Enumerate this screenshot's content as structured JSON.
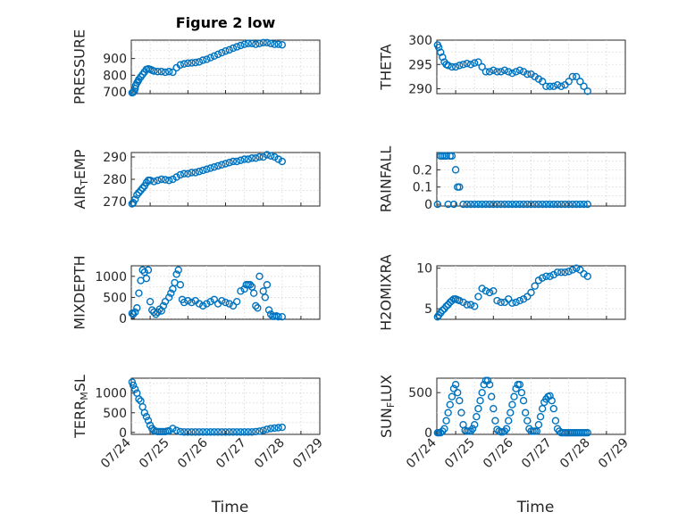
{
  "colors": {
    "marker": "#0072BD",
    "axis": "#262626",
    "grid": "#d6d6d6",
    "background": "#ffffff"
  },
  "chart_data": [
    {
      "type": "scatter",
      "title": "Figure 2 low",
      "ylabel": "PRESSURE",
      "ylim": [
        690,
        1010
      ],
      "yticks": [
        700,
        800,
        900
      ],
      "ytick_labels": [
        "700",
        "800",
        "900"
      ],
      "xlim": [
        0,
        5
      ],
      "grid": true,
      "show_xticklabels": false,
      "series": [
        {
          "x": [
            0.02,
            0.05,
            0.08,
            0.1,
            0.12,
            0.15,
            0.18,
            0.2,
            0.25,
            0.3,
            0.35,
            0.4,
            0.45,
            0.5,
            0.55,
            0.6,
            0.7,
            0.8,
            0.9,
            1.0,
            1.1,
            1.2,
            1.3,
            1.4,
            1.5,
            1.6,
            1.7,
            1.8,
            1.9,
            2.0,
            2.1,
            2.2,
            2.3,
            2.4,
            2.5,
            2.6,
            2.7,
            2.8,
            2.9,
            3.0,
            3.1,
            3.2,
            3.3,
            3.4,
            3.5,
            3.6,
            3.7,
            3.8,
            3.9,
            4.0
          ],
          "y": [
            695,
            698,
            705,
            720,
            740,
            755,
            765,
            775,
            790,
            805,
            820,
            835,
            838,
            835,
            830,
            825,
            822,
            822,
            818,
            822,
            818,
            845,
            862,
            868,
            872,
            874,
            876,
            880,
            890,
            895,
            905,
            915,
            925,
            935,
            945,
            952,
            962,
            970,
            978,
            985,
            990,
            990,
            985,
            990,
            995,
            995,
            990,
            985,
            985,
            982
          ]
        }
      ]
    },
    {
      "type": "scatter",
      "ylabel": "THETA",
      "ylim": [
        289,
        300
      ],
      "yticks": [
        290,
        295,
        300
      ],
      "ytick_labels": [
        "290",
        "295",
        "300"
      ],
      "xlim": [
        0,
        5
      ],
      "grid": true,
      "show_xticklabels": false,
      "series": [
        {
          "x": [
            0.02,
            0.05,
            0.1,
            0.15,
            0.2,
            0.25,
            0.3,
            0.4,
            0.5,
            0.6,
            0.7,
            0.8,
            0.9,
            1.0,
            1.1,
            1.2,
            1.3,
            1.4,
            1.5,
            1.6,
            1.7,
            1.8,
            1.9,
            2.0,
            2.1,
            2.2,
            2.3,
            2.4,
            2.5,
            2.6,
            2.7,
            2.8,
            2.9,
            3.0,
            3.1,
            3.2,
            3.3,
            3.4,
            3.5,
            3.6,
            3.7,
            3.8,
            3.9,
            4.0
          ],
          "y": [
            299,
            298.5,
            297.5,
            296.5,
            295.5,
            295,
            294.8,
            294.5,
            294.5,
            294.8,
            295,
            295.2,
            295,
            295.3,
            295.5,
            294.5,
            293.5,
            293.5,
            293.8,
            293.5,
            293.5,
            293.8,
            293.5,
            293.2,
            293.5,
            293.8,
            293.5,
            293,
            293,
            292.5,
            292,
            291.5,
            290.5,
            290.5,
            290.5,
            290.8,
            290.5,
            290.8,
            291.5,
            292.5,
            292.5,
            291.5,
            290.5,
            289.5
          ]
        }
      ]
    },
    {
      "type": "scatter",
      "ylabel": "AIR_TEMP",
      "ylim": [
        268,
        292
      ],
      "yticks": [
        270,
        280,
        290
      ],
      "ytick_labels": [
        "270",
        "280",
        "290"
      ],
      "xlim": [
        0,
        5
      ],
      "grid": true,
      "show_xticklabels": false,
      "series": [
        {
          "x": [
            0.02,
            0.05,
            0.1,
            0.15,
            0.2,
            0.25,
            0.3,
            0.35,
            0.4,
            0.45,
            0.5,
            0.6,
            0.7,
            0.8,
            0.9,
            1.0,
            1.1,
            1.2,
            1.3,
            1.4,
            1.5,
            1.6,
            1.7,
            1.8,
            1.9,
            2.0,
            2.1,
            2.2,
            2.3,
            2.4,
            2.5,
            2.6,
            2.7,
            2.8,
            2.9,
            3.0,
            3.1,
            3.2,
            3.3,
            3.4,
            3.5,
            3.6,
            3.7,
            3.8,
            3.9,
            4.0
          ],
          "y": [
            269,
            269.5,
            271,
            273,
            274,
            275,
            276,
            277,
            278.5,
            279.5,
            279.5,
            279,
            279.5,
            280,
            279.8,
            279.5,
            280,
            281,
            282,
            282.5,
            282.5,
            283,
            283,
            283.5,
            284,
            284.5,
            285,
            285.5,
            286,
            286.5,
            287,
            287.5,
            288,
            288,
            288.5,
            289,
            289,
            289.5,
            289.5,
            290,
            290,
            291,
            290.5,
            290,
            289,
            288
          ]
        }
      ]
    },
    {
      "type": "scatter",
      "ylabel": "RAINFALL",
      "ylim": [
        -0.01,
        0.3
      ],
      "yticks": [
        0,
        0.1,
        0.2
      ],
      "ytick_labels": [
        "0",
        "0.1",
        "0.2"
      ],
      "xlim": [
        0,
        5
      ],
      "grid": true,
      "show_xticklabels": false,
      "series": [
        {
          "x": [
            0.02,
            0.1,
            0.15,
            0.2,
            0.25,
            0.3,
            0.35,
            0.4,
            0.45,
            0.5,
            0.55,
            0.6,
            0.7,
            0.8,
            0.9,
            1.0,
            1.1,
            1.2,
            1.3,
            1.4,
            1.5,
            1.6,
            1.7,
            1.8,
            1.9,
            2.0,
            2.1,
            2.2,
            2.3,
            2.4,
            2.5,
            2.6,
            2.7,
            2.8,
            2.9,
            3.0,
            3.1,
            3.2,
            3.3,
            3.4,
            3.5,
            3.6,
            3.7,
            3.8,
            3.9,
            4.0
          ],
          "y": [
            0,
            0.28,
            0.28,
            0.28,
            0.28,
            0,
            0.28,
            0.28,
            0,
            0.2,
            0.1,
            0.1,
            0,
            0,
            0,
            0,
            0,
            0,
            0,
            0,
            0,
            0,
            0,
            0,
            0,
            0,
            0,
            0,
            0,
            0,
            0,
            0,
            0,
            0,
            0,
            0,
            0,
            0,
            0,
            0,
            0,
            0,
            0,
            0,
            0,
            0
          ]
        }
      ]
    },
    {
      "type": "scatter",
      "ylabel": "MIXDEPTH",
      "ylim": [
        -20,
        1250
      ],
      "yticks": [
        0,
        500,
        1000
      ],
      "ytick_labels": [
        "0",
        "500",
        "1000"
      ],
      "xlim": [
        0,
        5
      ],
      "grid": true,
      "show_xticklabels": false,
      "series": [
        {
          "x": [
            0.02,
            0.05,
            0.1,
            0.15,
            0.2,
            0.25,
            0.3,
            0.35,
            0.4,
            0.45,
            0.5,
            0.55,
            0.6,
            0.65,
            0.7,
            0.75,
            0.8,
            0.85,
            0.9,
            1.0,
            1.05,
            1.1,
            1.15,
            1.2,
            1.25,
            1.3,
            1.35,
            1.4,
            1.5,
            1.6,
            1.7,
            1.8,
            1.9,
            2.0,
            2.1,
            2.2,
            2.3,
            2.4,
            2.5,
            2.6,
            2.7,
            2.8,
            2.9,
            3.0,
            3.05,
            3.1,
            3.15,
            3.2,
            3.25,
            3.3,
            3.35,
            3.4,
            3.5,
            3.55,
            3.6,
            3.65,
            3.7,
            3.75,
            3.8,
            3.85,
            3.9,
            4.0
          ],
          "y": [
            120,
            100,
            150,
            250,
            600,
            900,
            1150,
            1100,
            950,
            1150,
            400,
            200,
            150,
            100,
            150,
            220,
            180,
            300,
            400,
            500,
            600,
            700,
            850,
            1050,
            1150,
            800,
            450,
            380,
            420,
            380,
            420,
            350,
            300,
            350,
            400,
            450,
            350,
            420,
            380,
            350,
            300,
            400,
            650,
            700,
            800,
            800,
            800,
            750,
            600,
            300,
            250,
            1000,
            650,
            500,
            800,
            200,
            100,
            50,
            50,
            60,
            40,
            40
          ]
        }
      ]
    },
    {
      "type": "scatter",
      "ylabel": "H2OMIXRA",
      "ylim": [
        3.7,
        10.3
      ],
      "yticks": [
        5,
        10
      ],
      "ytick_labels": [
        "5",
        "10"
      ],
      "xlim": [
        0,
        5
      ],
      "grid": true,
      "show_xticklabels": false,
      "series": [
        {
          "x": [
            0.02,
            0.05,
            0.1,
            0.15,
            0.2,
            0.25,
            0.3,
            0.35,
            0.4,
            0.45,
            0.5,
            0.55,
            0.6,
            0.7,
            0.8,
            0.9,
            1.0,
            1.1,
            1.2,
            1.3,
            1.4,
            1.5,
            1.6,
            1.7,
            1.8,
            1.9,
            2.0,
            2.1,
            2.2,
            2.3,
            2.4,
            2.5,
            2.6,
            2.7,
            2.8,
            2.9,
            3.0,
            3.1,
            3.2,
            3.3,
            3.4,
            3.5,
            3.6,
            3.7,
            3.8,
            3.9,
            4.0
          ],
          "y": [
            4,
            4.2,
            4.5,
            4.8,
            5,
            5.3,
            5.5,
            5.8,
            6,
            6.2,
            6.2,
            6.1,
            6,
            5.8,
            5.5,
            5.5,
            5.3,
            6.5,
            7.5,
            7.2,
            7,
            7.2,
            6,
            5.8,
            5.8,
            6.2,
            5.7,
            5.8,
            6,
            6.2,
            6.5,
            7,
            7.8,
            8.5,
            8.8,
            9,
            9,
            9.2,
            9.5,
            9.5,
            9.5,
            9.6,
            9.8,
            10,
            9.8,
            9.3,
            9
          ]
        }
      ]
    },
    {
      "type": "scatter",
      "ylabel": "TERR_MSL",
      "ylim": [
        -50,
        1380
      ],
      "yticks": [
        0,
        500,
        1000
      ],
      "ytick_labels": [
        "0",
        "500",
        "1000"
      ],
      "xlim": [
        0,
        5
      ],
      "grid": true,
      "xticks": [
        0.5,
        1.5,
        2.5,
        3.5,
        4.5,
        5.5
      ],
      "xtick_labels": [
        "07/24",
        "07/25",
        "07/26",
        "07/27",
        "07/28",
        "07/29"
      ],
      "xlabel": "Time",
      "series": [
        {
          "x": [
            0.02,
            0.05,
            0.1,
            0.15,
            0.2,
            0.25,
            0.3,
            0.35,
            0.4,
            0.45,
            0.5,
            0.55,
            0.6,
            0.65,
            0.7,
            0.75,
            0.8,
            0.85,
            0.9,
            0.95,
            1.0,
            1.1,
            1.2,
            1.3,
            1.4,
            1.5,
            1.6,
            1.7,
            1.8,
            1.9,
            2.0,
            2.1,
            2.2,
            2.3,
            2.4,
            2.5,
            2.6,
            2.7,
            2.8,
            2.9,
            3.0,
            3.1,
            3.2,
            3.3,
            3.4,
            3.5,
            3.6,
            3.7,
            3.8,
            3.9,
            4.0
          ],
          "y": [
            1280,
            1200,
            1100,
            1000,
            850,
            800,
            650,
            500,
            400,
            300,
            180,
            100,
            50,
            30,
            20,
            20,
            20,
            20,
            20,
            30,
            40,
            100,
            50,
            20,
            10,
            10,
            10,
            10,
            10,
            10,
            10,
            10,
            10,
            10,
            10,
            10,
            10,
            10,
            10,
            10,
            10,
            10,
            10,
            20,
            30,
            50,
            80,
            100,
            110,
            120,
            130
          ]
        }
      ]
    },
    {
      "type": "scatter",
      "ylabel": "SUN_FLUX",
      "ylim": [
        -20,
        680
      ],
      "yticks": [
        0,
        500
      ],
      "ytick_labels": [
        "0",
        "500"
      ],
      "xlim": [
        0,
        5
      ],
      "grid": true,
      "xticks": [
        0.5,
        1.5,
        2.5,
        3.5,
        4.5,
        5.5
      ],
      "xtick_labels": [
        "07/24",
        "07/25",
        "07/26",
        "07/27",
        "07/28",
        "07/29"
      ],
      "xlabel": "Time",
      "series": [
        {
          "x": [
            0.02,
            0.05,
            0.1,
            0.15,
            0.2,
            0.25,
            0.3,
            0.35,
            0.4,
            0.45,
            0.5,
            0.55,
            0.6,
            0.65,
            0.7,
            0.75,
            0.8,
            0.85,
            0.9,
            0.95,
            1.0,
            1.05,
            1.1,
            1.15,
            1.2,
            1.25,
            1.3,
            1.35,
            1.4,
            1.45,
            1.5,
            1.55,
            1.6,
            1.65,
            1.7,
            1.75,
            1.8,
            1.85,
            1.9,
            1.95,
            2.0,
            2.05,
            2.1,
            2.15,
            2.2,
            2.25,
            2.3,
            2.35,
            2.4,
            2.45,
            2.5,
            2.55,
            2.6,
            2.65,
            2.7,
            2.75,
            2.8,
            2.85,
            2.9,
            2.95,
            3.0,
            3.05,
            3.1,
            3.15,
            3.2,
            3.25,
            3.3,
            3.35,
            3.4,
            3.45,
            3.5,
            3.55,
            3.6,
            3.65,
            3.7,
            3.75,
            3.8,
            3.85,
            3.9,
            3.95,
            4.0
          ],
          "y": [
            0,
            0,
            0,
            20,
            50,
            150,
            250,
            350,
            450,
            550,
            600,
            500,
            400,
            250,
            100,
            30,
            20,
            20,
            20,
            50,
            100,
            200,
            300,
            400,
            500,
            600,
            650,
            650,
            600,
            450,
            300,
            150,
            40,
            20,
            10,
            10,
            20,
            50,
            150,
            250,
            350,
            450,
            550,
            600,
            600,
            500,
            400,
            250,
            150,
            50,
            20,
            20,
            20,
            20,
            100,
            200,
            300,
            380,
            420,
            450,
            460,
            400,
            300,
            150,
            50,
            20,
            0,
            0,
            0,
            0,
            0,
            0,
            0,
            0,
            0,
            0,
            0,
            0,
            0,
            0,
            0
          ]
        }
      ]
    }
  ]
}
